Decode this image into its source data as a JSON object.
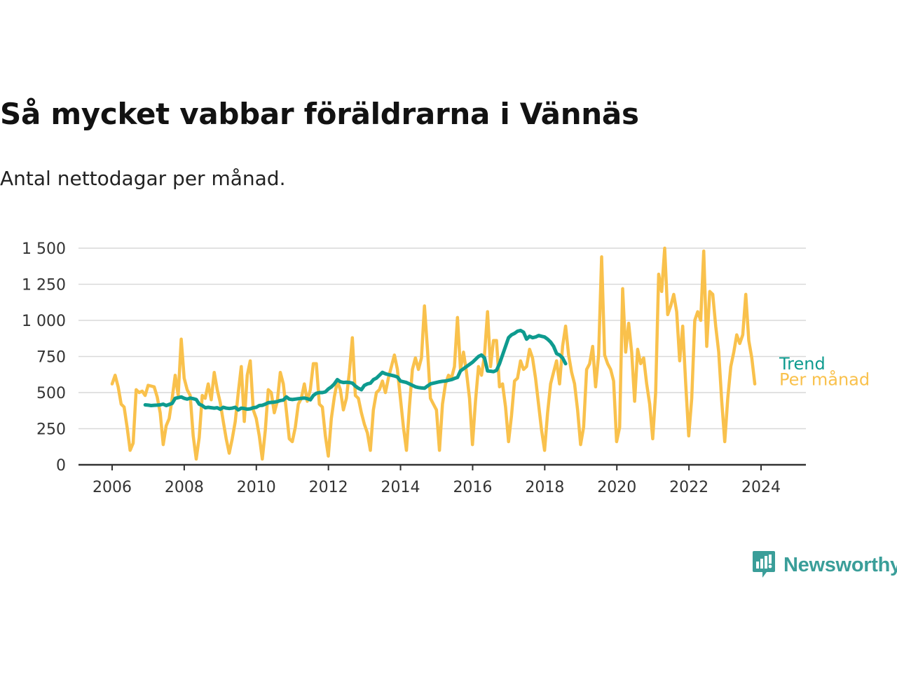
{
  "header": {
    "title": "Så mycket vabbar föräldrarna i Vännäs",
    "subtitle": "Antal nettodagar per månad."
  },
  "brand": {
    "name": "Newsworthy"
  },
  "colors": {
    "monthly": "#f9c14c",
    "trend": "#0e9b8f",
    "grid": "#d9d9d9",
    "axis": "#333333"
  },
  "chart_data": {
    "type": "line",
    "title": "Så mycket vabbar föräldrarna i Vännäs",
    "subtitle": "Antal nettodagar per månad.",
    "xlim": [
      2005.8,
      2025.3
    ],
    "ylim": [
      0,
      1500
    ],
    "x_ticks": [
      2006,
      2008,
      2010,
      2012,
      2014,
      2016,
      2018,
      2020,
      2022,
      2024
    ],
    "x_tick_labels": [
      "2006",
      "2008",
      "2010",
      "2012",
      "2014",
      "2016",
      "2018",
      "2020",
      "2022",
      "2024"
    ],
    "y_ticks": [
      0,
      250,
      500,
      750,
      1000,
      1250,
      1500
    ],
    "y_tick_labels": [
      "0",
      "250",
      "500",
      "750",
      "1 000",
      "1 250",
      "1 500"
    ],
    "grid": true,
    "series": [
      {
        "name": "Trend",
        "color": "#0e9b8f",
        "x_start": 2006.917,
        "x_step": 0.0833,
        "values": [
          415,
          413,
          410,
          412,
          413,
          415,
          420,
          410,
          418,
          425,
          460,
          465,
          470,
          460,
          455,
          462,
          458,
          452,
          420,
          410,
          395,
          398,
          395,
          392,
          395,
          385,
          398,
          392,
          390,
          392,
          398,
          380,
          392,
          390,
          385,
          388,
          395,
          398,
          410,
          412,
          420,
          430,
          432,
          434,
          438,
          445,
          448,
          470,
          455,
          452,
          455,
          458,
          460,
          462,
          458,
          450,
          480,
          495,
          500,
          500,
          505,
          525,
          540,
          560,
          590,
          575,
          570,
          572,
          570,
          565,
          545,
          530,
          520,
          550,
          560,
          565,
          590,
          600,
          620,
          640,
          630,
          625,
          620,
          615,
          608,
          580,
          575,
          570,
          560,
          550,
          540,
          535,
          532,
          530,
          545,
          560,
          565,
          570,
          575,
          578,
          580,
          585,
          590,
          598,
          605,
          650,
          665,
          680,
          695,
          710,
          730,
          750,
          760,
          740,
          650,
          648,
          645,
          655,
          700,
          760,
          820,
          880,
          900,
          910,
          925,
          930,
          918,
          870,
          890,
          880,
          885,
          895,
          890,
          885,
          870,
          850,
          820,
          770,
          760,
          740,
          700
        ]
      },
      {
        "name": "Per månad",
        "color": "#f9c14c",
        "x_start": 2006.0,
        "x_step": 0.0833,
        "values": [
          560,
          620,
          540,
          420,
          400,
          260,
          100,
          150,
          520,
          500,
          510,
          480,
          550,
          545,
          540,
          470,
          360,
          140,
          270,
          320,
          460,
          620,
          480,
          870,
          600,
          520,
          480,
          200,
          40,
          190,
          480,
          460,
          560,
          450,
          640,
          520,
          430,
          300,
          180,
          80,
          180,
          300,
          500,
          680,
          300,
          620,
          720,
          380,
          320,
          200,
          40,
          240,
          520,
          500,
          360,
          440,
          640,
          560,
          380,
          180,
          160,
          260,
          420,
          460,
          560,
          440,
          520,
          700,
          700,
          420,
          400,
          200,
          60,
          320,
          470,
          580,
          520,
          380,
          460,
          640,
          880,
          480,
          460,
          360,
          280,
          220,
          100,
          380,
          500,
          520,
          580,
          500,
          600,
          680,
          760,
          660,
          460,
          260,
          100,
          400,
          660,
          740,
          660,
          740,
          1100,
          800,
          460,
          420,
          380,
          100,
          420,
          560,
          620,
          600,
          680,
          1020,
          660,
          780,
          640,
          460,
          140,
          440,
          680,
          620,
          760,
          1060,
          680,
          860,
          860,
          540,
          560,
          400,
          160,
          340,
          580,
          600,
          720,
          660,
          680,
          800,
          740,
          600,
          420,
          240,
          100,
          360,
          560,
          640,
          720,
          560,
          820,
          960,
          760,
          640,
          560,
          380,
          140,
          260,
          660,
          700,
          820,
          540,
          760,
          1440,
          760,
          700,
          660,
          580,
          160,
          260,
          1220,
          780,
          980,
          780,
          440,
          800,
          700,
          740,
          560,
          420,
          180,
          500,
          1320,
          1200,
          1500,
          1040,
          1100,
          1180,
          1060,
          720,
          960,
          560,
          200,
          460,
          1000,
          1060,
          1000,
          1480,
          820,
          1200,
          1180,
          960,
          780,
          440,
          160,
          460,
          680,
          780,
          900,
          840,
          900,
          1180,
          860,
          740,
          560
        ]
      }
    ]
  }
}
